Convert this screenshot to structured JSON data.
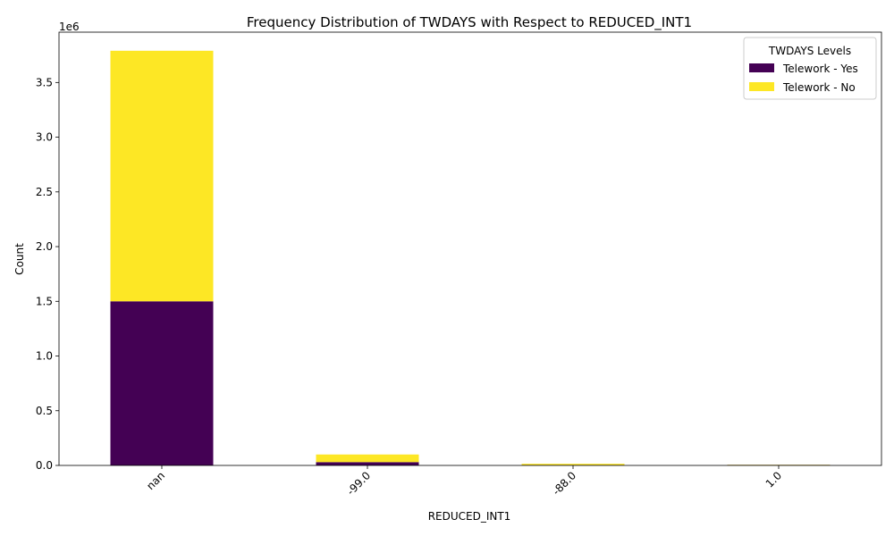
{
  "chart_data": {
    "type": "bar",
    "stacked": true,
    "title": "Frequency Distribution of TWDAYS with Respect to REDUCED_INT1",
    "xlabel": "REDUCED_INT1",
    "ylabel": "Count",
    "y_multiplier_label": "1e6",
    "categories": [
      "nan",
      "-99.0",
      "-88.0",
      "1.0"
    ],
    "series": [
      {
        "name": "Telework - Yes",
        "color": "#440154",
        "values": [
          1500000,
          30000,
          3000,
          4000
        ]
      },
      {
        "name": "Telework - No",
        "color": "#fde725",
        "values": [
          2290000,
          70000,
          12000,
          2000
        ]
      }
    ],
    "ylim": [
      0,
      3960000
    ],
    "yticks": [
      0,
      500000,
      1000000,
      1500000,
      2000000,
      2500000,
      3000000,
      3500000
    ],
    "ytick_labels": [
      "0.0",
      "0.5",
      "1.0",
      "1.5",
      "2.0",
      "2.5",
      "3.0",
      "3.5"
    ],
    "legend": {
      "title": "TWDAYS Levels",
      "placement": "top-right"
    },
    "grid": false
  }
}
